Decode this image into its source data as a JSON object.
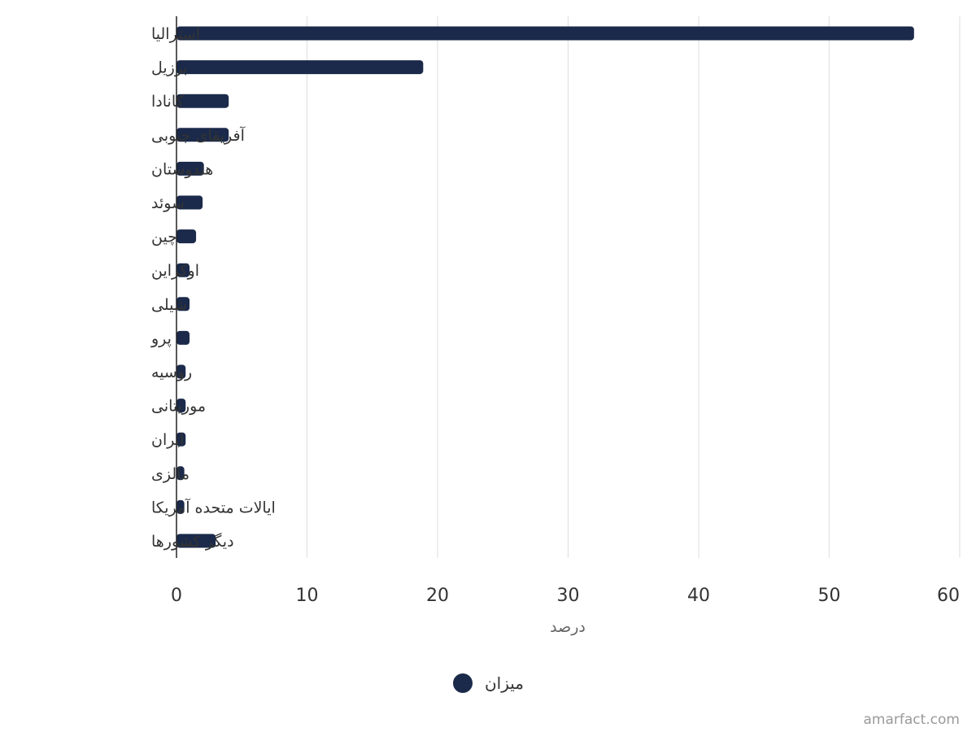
{
  "chart_data": {
    "type": "bar",
    "orientation": "horizontal",
    "categories": [
      "استرالیا",
      "برزیل",
      "کانادا",
      "آفریقای جنوبی",
      "هندوستان",
      "سوئد",
      "چین",
      "اوکراین",
      "شیلی",
      "پرو",
      "روسیه",
      "موریتانی",
      "ایران",
      "مالزی",
      "ایالات متحده آمریکا",
      "دیگر کشورها"
    ],
    "series": [
      {
        "name": "میزان",
        "values": [
          56.5,
          18.9,
          4,
          4,
          2.1,
          2,
          1.5,
          1,
          1,
          1,
          0.7,
          0.7,
          0.7,
          0.6,
          0.6,
          3
        ]
      }
    ],
    "xlabel": "درصد",
    "xlim": [
      0,
      60
    ],
    "xticks": [
      0,
      10,
      20,
      30,
      40,
      50,
      60
    ],
    "grid": true,
    "legend_position": "bottom-center",
    "bar_color": "#1b2a4a"
  },
  "credit": "amarfact.com"
}
